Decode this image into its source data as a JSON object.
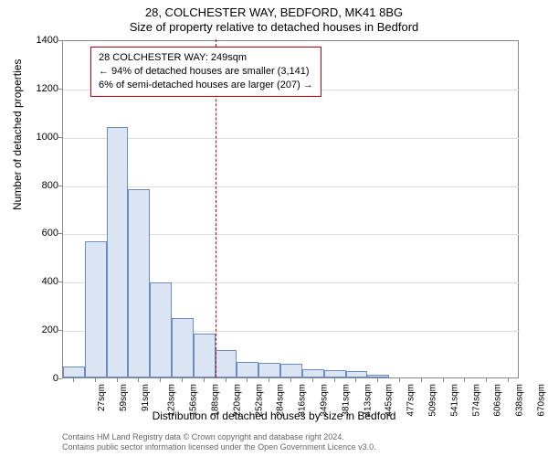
{
  "chart": {
    "type": "histogram",
    "title_main": "28, COLCHESTER WAY, BEDFORD, MK41 8BG",
    "title_sub": "Size of property relative to detached houses in Bedford",
    "ylabel": "Number of detached properties",
    "xlabel": "Distribution of detached houses by size in Bedford",
    "background_color": "#ffffff",
    "bar_fill": "#dbe5f3",
    "bar_border": "#6a8cc5",
    "grid_color": "#dddddd",
    "axis_color": "#888888",
    "reference_line_color": "#cc0000",
    "ylim": [
      0,
      1400
    ],
    "ytick_step": 200,
    "yticks": [
      0,
      200,
      400,
      600,
      800,
      1000,
      1200,
      1400
    ],
    "categories": [
      "27sqm",
      "59sqm",
      "91sqm",
      "123sqm",
      "156sqm",
      "188sqm",
      "220sqm",
      "252sqm",
      "284sqm",
      "316sqm",
      "349sqm",
      "381sqm",
      "413sqm",
      "445sqm",
      "477sqm",
      "509sqm",
      "541sqm",
      "574sqm",
      "606sqm",
      "638sqm",
      "670sqm"
    ],
    "values": [
      45,
      565,
      1035,
      780,
      395,
      245,
      180,
      115,
      65,
      60,
      55,
      35,
      30,
      25,
      10,
      0,
      0,
      0,
      0,
      0,
      0
    ],
    "reference_index": 7,
    "reference_value": "249sqm",
    "bar_width_ratio": 1.0,
    "title_fontsize": 13,
    "label_fontsize": 12,
    "tick_fontsize": 11,
    "xtick_fontsize": 10,
    "xtick_rotation": -90
  },
  "annotation": {
    "line1": "28 COLCHESTER WAY: 249sqm",
    "line2": "← 94% of detached houses are smaller (3,141)",
    "line3": "6% of semi-detached houses are larger (207) →",
    "border_color": "#cc0000",
    "fontsize": 11
  },
  "footer": {
    "line1": "Contains HM Land Registry data © Crown copyright and database right 2024.",
    "line2": "Contains public sector information licensed under the Open Government Licence v3.0.",
    "color": "#666666",
    "fontsize": 9
  }
}
